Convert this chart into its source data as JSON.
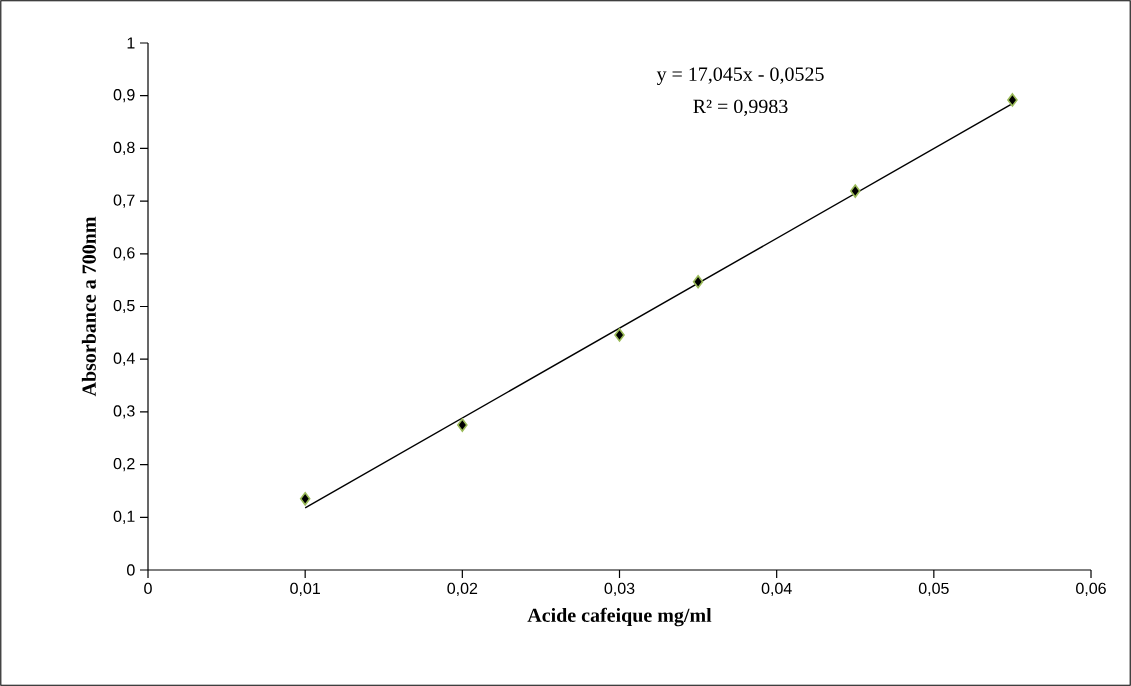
{
  "chart_data": {
    "type": "scatter",
    "xlabel": "Acide cafeique mg/ml",
    "ylabel": "Absorbance a 700nm",
    "annotations": [
      "y = 17,045x - 0,0525",
      "R² = 0,9983"
    ],
    "series": [
      {
        "color": "#000000",
        "x": [
          0.01,
          0.02,
          0.03,
          0.035,
          0.045,
          0.055
        ],
        "values": [
          0.135,
          0.275,
          0.446,
          0.547,
          0.719,
          0.892
        ]
      },
      {
        "type": "line",
        "color": "#000000",
        "x": [
          0.01,
          0.055
        ],
        "values": [
          0.118,
          0.885
        ],
        "marker": "none"
      }
    ],
    "marker": "diamond",
    "line_style": "solid",
    "grid": false,
    "xlim": [
      0,
      0.06
    ],
    "ylim": [
      0,
      1
    ],
    "xticks": [
      0,
      {
        "value": 0.01,
        "label": "0,01"
      },
      {
        "value": 0.02,
        "label": "0,02"
      },
      {
        "value": 0.03,
        "label": "0,03"
      },
      {
        "value": 0.04,
        "label": "0,04"
      },
      {
        "value": 0.05,
        "label": "0,05"
      },
      {
        "value": 0.06,
        "label": "0,06"
      }
    ],
    "yticks": [
      0,
      {
        "value": 0.1,
        "label": "0,1"
      },
      {
        "value": 0.2,
        "label": "0,2"
      },
      {
        "value": 0.3,
        "label": "0,3"
      },
      {
        "value": 0.4,
        "label": "0,4"
      },
      {
        "value": 0.5,
        "label": "0,5"
      },
      {
        "value": 0.6,
        "label": "0,6"
      },
      {
        "value": 0.7,
        "label": "0,7"
      },
      {
        "value": 0.8,
        "label": "0,8"
      },
      {
        "value": 0.9,
        "label": "0,9"
      },
      1
    ]
  }
}
